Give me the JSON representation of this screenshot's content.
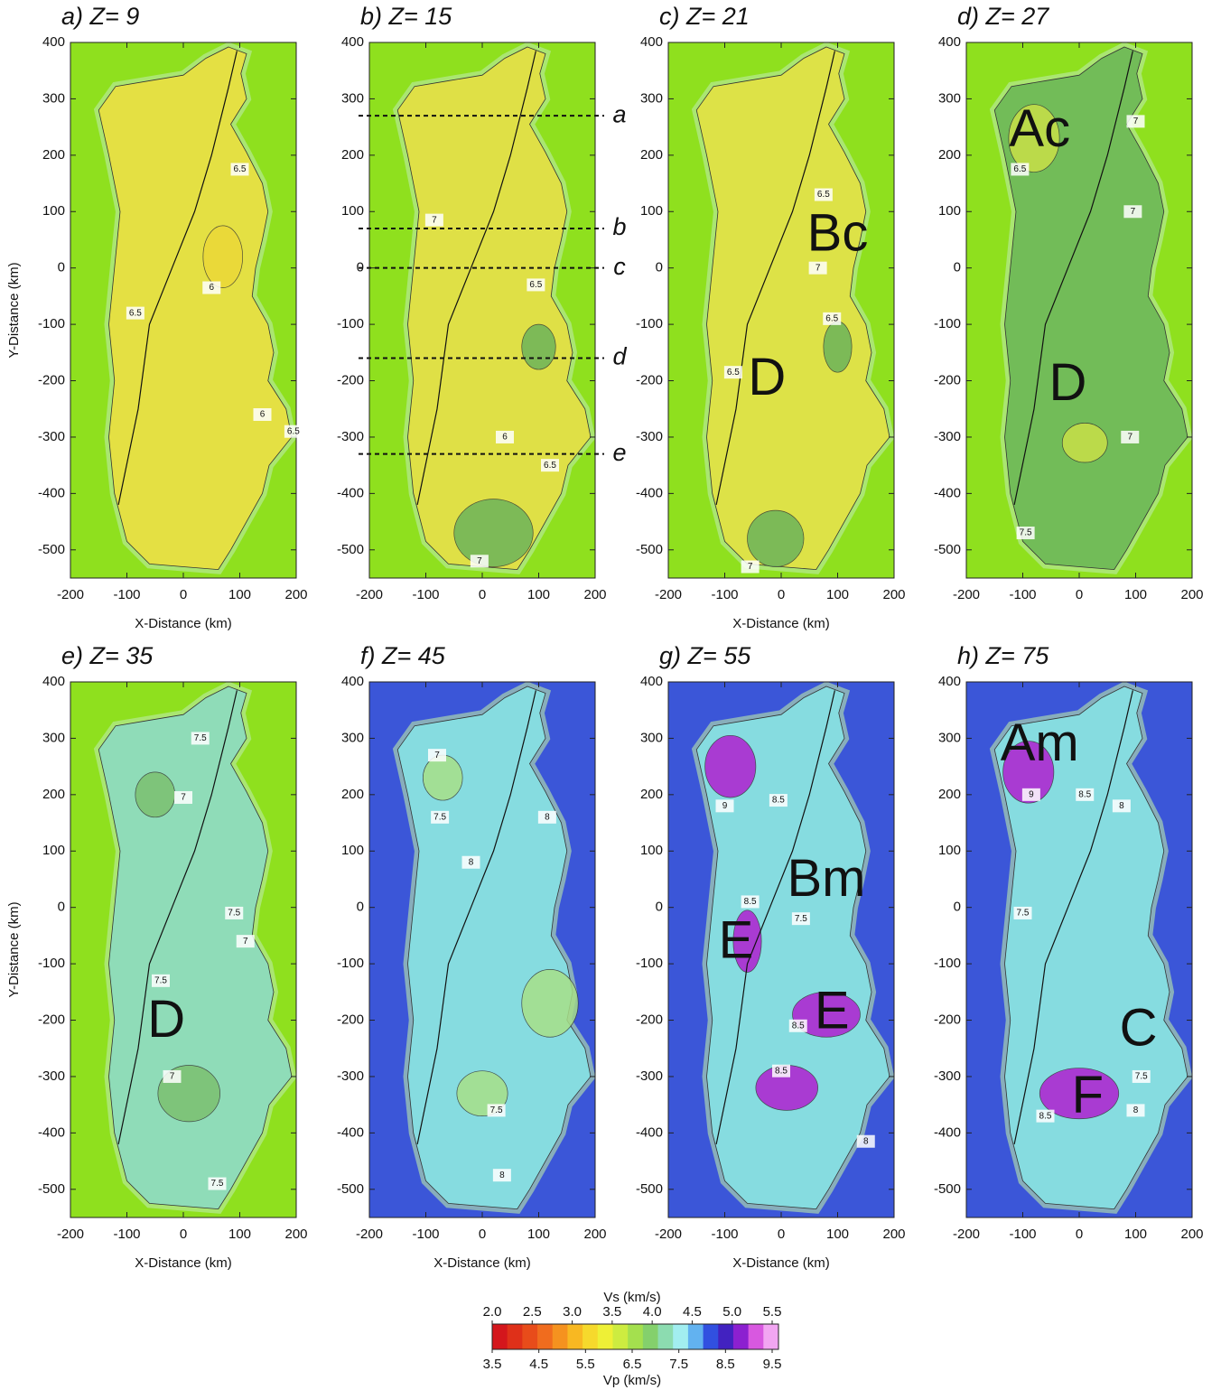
{
  "axes": {
    "x_label": "X-Distance (km)",
    "y_label": "Y-Distance (km)",
    "xlim": [
      -200,
      200
    ],
    "ylim": [
      -550,
      400
    ],
    "xticks": [
      -200,
      -100,
      0,
      100,
      200
    ],
    "yticks": [
      400,
      300,
      200,
      100,
      0,
      -100,
      -200,
      -300,
      -400,
      -500
    ]
  },
  "panels": [
    {
      "title": "a) Z=  9",
      "background": "#8fe01e",
      "land": "#e4e043",
      "inner": "#ecd838",
      "show_x_label": true,
      "show_y_label": true,
      "contour_labels": [
        6.5,
        6,
        6.5,
        6,
        6.5
      ],
      "annotations": []
    },
    {
      "title": "b) Z= 15",
      "background": "#8fe01e",
      "land": "#dfe046",
      "inner": "#6cb45a",
      "show_x_label": false,
      "show_y_label": false,
      "contour_labels": [
        6.5,
        6.5,
        7,
        6,
        7
      ],
      "annotations": [],
      "profiles": [
        {
          "label": "a",
          "y": 270
        },
        {
          "label": "b",
          "y": 70
        },
        {
          "label": "c",
          "y": 0
        },
        {
          "label": "d",
          "y": -160
        },
        {
          "label": "e",
          "y": -330
        }
      ]
    },
    {
      "title": "c) Z= 21",
      "background": "#8fe01e",
      "land": "#dde247",
      "inner": "#6cb45a",
      "show_x_label": true,
      "show_y_label": false,
      "contour_labels": [
        6.5,
        6.5,
        7,
        6.5,
        7
      ],
      "annotations": [
        "Bc",
        "D"
      ]
    },
    {
      "title": "d) Z= 27",
      "background": "#8fe01e",
      "land": "#72bc58",
      "inner": "#c8e048",
      "show_x_label": false,
      "show_y_label": false,
      "contour_labels": [
        6.5,
        7,
        7,
        7,
        7.5
      ],
      "annotations": [
        "Ac",
        "D"
      ]
    },
    {
      "title": "e) Z= 35",
      "background": "#8fe01e",
      "land": "#8fdcb8",
      "inner": "#7cc070",
      "show_x_label": true,
      "show_y_label": true,
      "contour_labels": [
        7.5,
        7,
        7.5,
        7,
        7.5,
        7,
        7.5
      ],
      "annotations": [
        "D"
      ]
    },
    {
      "title": "f) Z= 45",
      "background": "#3b56d8",
      "land": "#86dce0",
      "inner": "#a8e088",
      "show_x_label": true,
      "show_y_label": false,
      "contour_labels": [
        7,
        7.5,
        8,
        8,
        7.5,
        8
      ],
      "annotations": []
    },
    {
      "title": "g) Z= 55",
      "background": "#3b56d8",
      "land": "#86dce0",
      "inner": "#b020d0",
      "show_x_label": true,
      "show_y_label": false,
      "contour_labels": [
        9,
        8.5,
        8.5,
        7.5,
        8.5,
        8.5,
        8
      ],
      "annotations": [
        "Bm",
        "E",
        "E"
      ]
    },
    {
      "title": "h) Z= 75",
      "background": "#3b56d8",
      "land": "#86dce0",
      "inner": "#b020d0",
      "show_x_label": false,
      "show_y_label": false,
      "contour_labels": [
        9,
        8.5,
        8,
        7.5,
        7.5,
        8.5,
        8
      ],
      "annotations": [
        "Am",
        "C",
        "F"
      ]
    }
  ],
  "colorbar": {
    "vs_title": "Vs (km/s)",
    "vp_title": "Vp (km/s)",
    "vs_lim": [
      2.0,
      5.5
    ],
    "vp_lim": [
      3.5,
      9.5
    ],
    "vs_ticks": [
      {
        "value": 2,
        "label": "2.0"
      },
      2.5,
      {
        "value": 3,
        "label": "3.0"
      },
      3.5,
      {
        "value": 4,
        "label": "4.0"
      },
      4.5,
      {
        "value": 5,
        "label": "5.0"
      },
      5.5
    ],
    "vp_ticks": [
      3.5,
      4.5,
      5.5,
      6.5,
      7.5,
      8.5,
      9.5
    ],
    "colors": [
      "#d4161c",
      "#df3019",
      "#e84c1a",
      "#f06c1e",
      "#f5921f",
      "#f8b822",
      "#f6d92c",
      "#eef036",
      "#cdec40",
      "#a4e04e",
      "#84d06c",
      "#8cdcb0",
      "#a2eef0",
      "#62b2f0",
      "#3150e0",
      "#4222c0",
      "#8c20d0",
      "#d858e0",
      "#f2a6f2"
    ]
  }
}
